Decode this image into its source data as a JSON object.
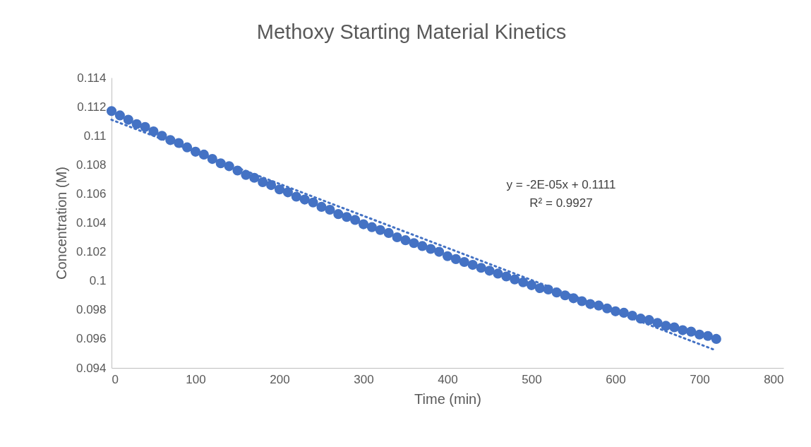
{
  "chart_data": {
    "type": "scatter",
    "title": "Methoxy Starting Material Kinetics",
    "xlabel": "Time (min)",
    "ylabel": "Concentration (M)",
    "x": [
      0,
      10,
      20,
      30,
      40,
      50,
      60,
      70,
      80,
      90,
      100,
      110,
      120,
      130,
      140,
      150,
      160,
      170,
      180,
      190,
      200,
      210,
      220,
      230,
      240,
      250,
      260,
      270,
      280,
      290,
      300,
      310,
      320,
      330,
      340,
      350,
      360,
      370,
      380,
      390,
      400,
      410,
      420,
      430,
      440,
      450,
      460,
      470,
      480,
      490,
      500,
      510,
      520,
      530,
      540,
      550,
      560,
      570,
      580,
      590,
      600,
      610,
      620,
      630,
      640,
      650,
      660,
      670,
      680,
      690,
      700,
      710,
      720
    ],
    "series": [
      {
        "color": "#4472c4",
        "marker": "circle",
        "values": [
          0.1117,
          0.1114,
          0.1111,
          0.1108,
          0.1106,
          0.1103,
          0.11,
          0.1097,
          0.1095,
          0.1092,
          0.1089,
          0.1087,
          0.1084,
          0.1081,
          0.1079,
          0.1076,
          0.1073,
          0.1071,
          0.1068,
          0.1066,
          0.1063,
          0.1061,
          0.1058,
          0.1056,
          0.1054,
          0.1051,
          0.1049,
          0.1046,
          0.1044,
          0.1042,
          0.1039,
          0.1037,
          0.1035,
          0.1033,
          0.103,
          0.1028,
          0.1026,
          0.1024,
          0.1022,
          0.102,
          0.1017,
          0.1015,
          0.1013,
          0.1011,
          0.1009,
          0.1007,
          0.1005,
          0.1003,
          0.1001,
          0.0999,
          0.0997,
          0.0995,
          0.0994,
          0.0992,
          0.099,
          0.0988,
          0.0986,
          0.0984,
          0.0983,
          0.0981,
          0.0979,
          0.0978,
          0.0976,
          0.0974,
          0.0973,
          0.0971,
          0.0969,
          0.0968,
          0.0966,
          0.0965,
          0.0963,
          0.0962,
          0.096
        ]
      },
      {
        "type": "line",
        "color": "#4472c4",
        "line_style": "dotted",
        "marker": "none",
        "x": [
          0,
          720
        ],
        "values": [
          0.1111,
          0.0952
        ]
      }
    ],
    "xlim": [
      0,
      800
    ],
    "xticks": [
      0,
      100,
      200,
      300,
      400,
      500,
      600,
      700,
      800
    ],
    "ylim": [
      0.094,
      0.114
    ],
    "yticks": [
      0.094,
      0.096,
      0.098,
      0.1,
      0.102,
      0.104,
      0.106,
      0.108,
      0.11,
      0.112,
      0.114
    ],
    "annotations": [
      "y = -2E-05x + 0.1111",
      "R² = 0.9927"
    ]
  }
}
